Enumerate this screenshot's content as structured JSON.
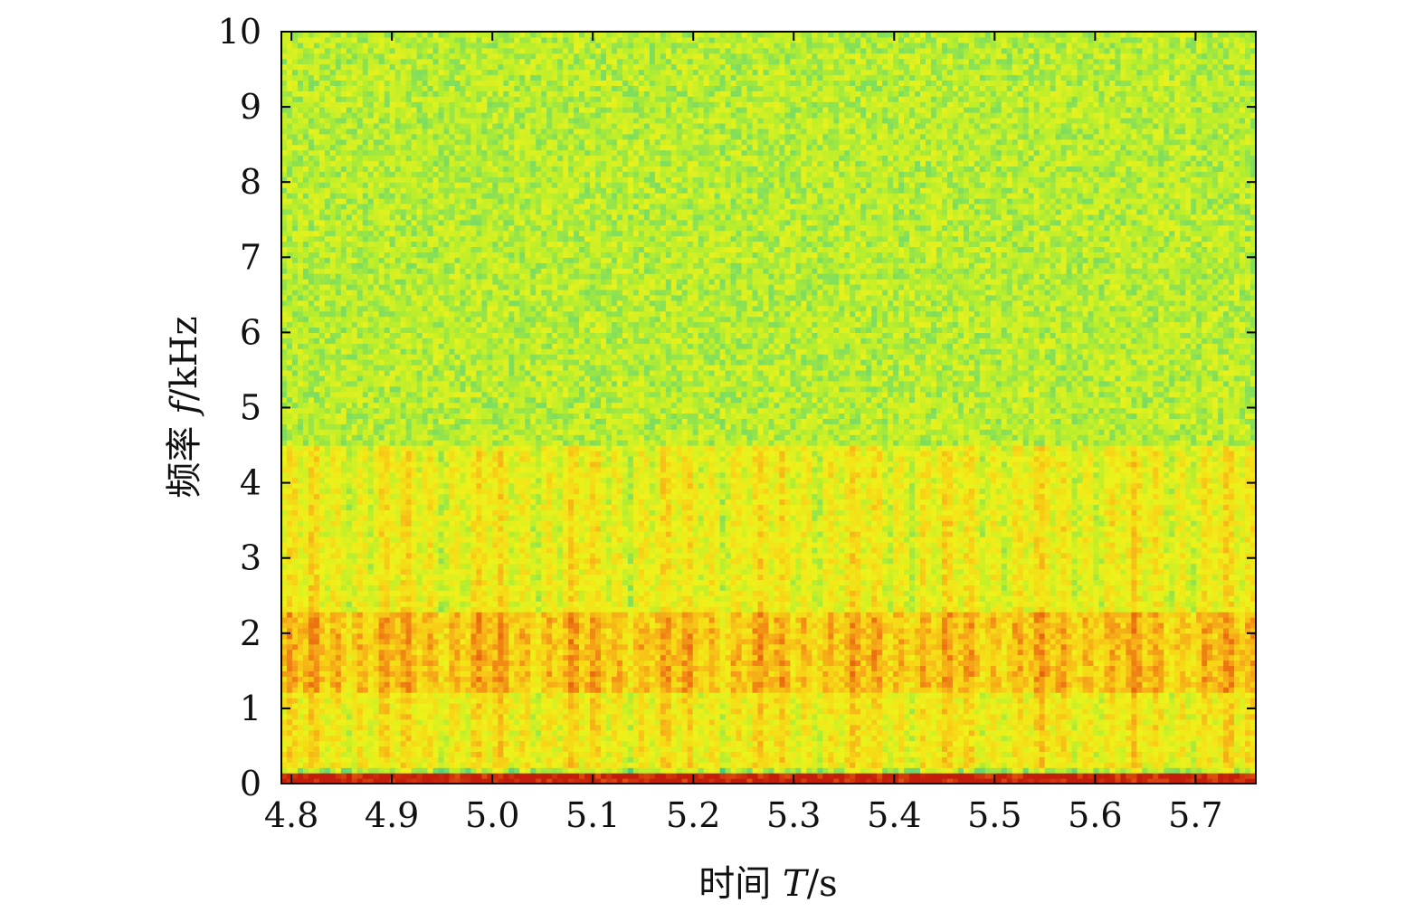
{
  "chart_data": {
    "type": "heatmap",
    "title": "",
    "xlabel": {
      "prefix": "时间 ",
      "symbol": "T",
      "unit": "/s"
    },
    "ylabel": {
      "prefix": "频率 ",
      "symbol": "f",
      "unit": "/kHz"
    },
    "xlim": [
      4.79,
      5.76
    ],
    "ylim": [
      0,
      10
    ],
    "x_ticks": [
      4.8,
      4.9,
      5.0,
      5.1,
      5.2,
      5.3,
      5.4,
      5.5,
      5.6,
      5.7
    ],
    "x_tick_labels": [
      "4.8",
      "4.9",
      "5.0",
      "5.1",
      "5.2",
      "5.3",
      "5.4",
      "5.5",
      "5.6",
      "5.7"
    ],
    "y_ticks": [
      0,
      1,
      2,
      3,
      4,
      5,
      6,
      7,
      8,
      9,
      10
    ],
    "y_tick_labels": [
      "0",
      "1",
      "2",
      "3",
      "4",
      "5",
      "6",
      "7",
      "8",
      "9",
      "10"
    ],
    "colormap": [
      "#20b8a0",
      "#5ed47a",
      "#b8ee2c",
      "#eef21a",
      "#f7d516",
      "#f5a018",
      "#e8600f",
      "#c41d0b"
    ],
    "background_level": 0.3,
    "bands": [
      {
        "f_low": 0.0,
        "f_high": 0.12,
        "level": 1.0
      },
      {
        "f_low": 1.2,
        "f_high": 2.3,
        "level": 0.62
      },
      {
        "f_low": 0.2,
        "f_high": 1.2,
        "level": 0.47
      },
      {
        "f_low": 2.3,
        "f_high": 4.5,
        "level": 0.44
      },
      {
        "f_low": 4.5,
        "f_high": 10.0,
        "level": 0.3
      }
    ],
    "grid": false,
    "colorbar": false
  }
}
